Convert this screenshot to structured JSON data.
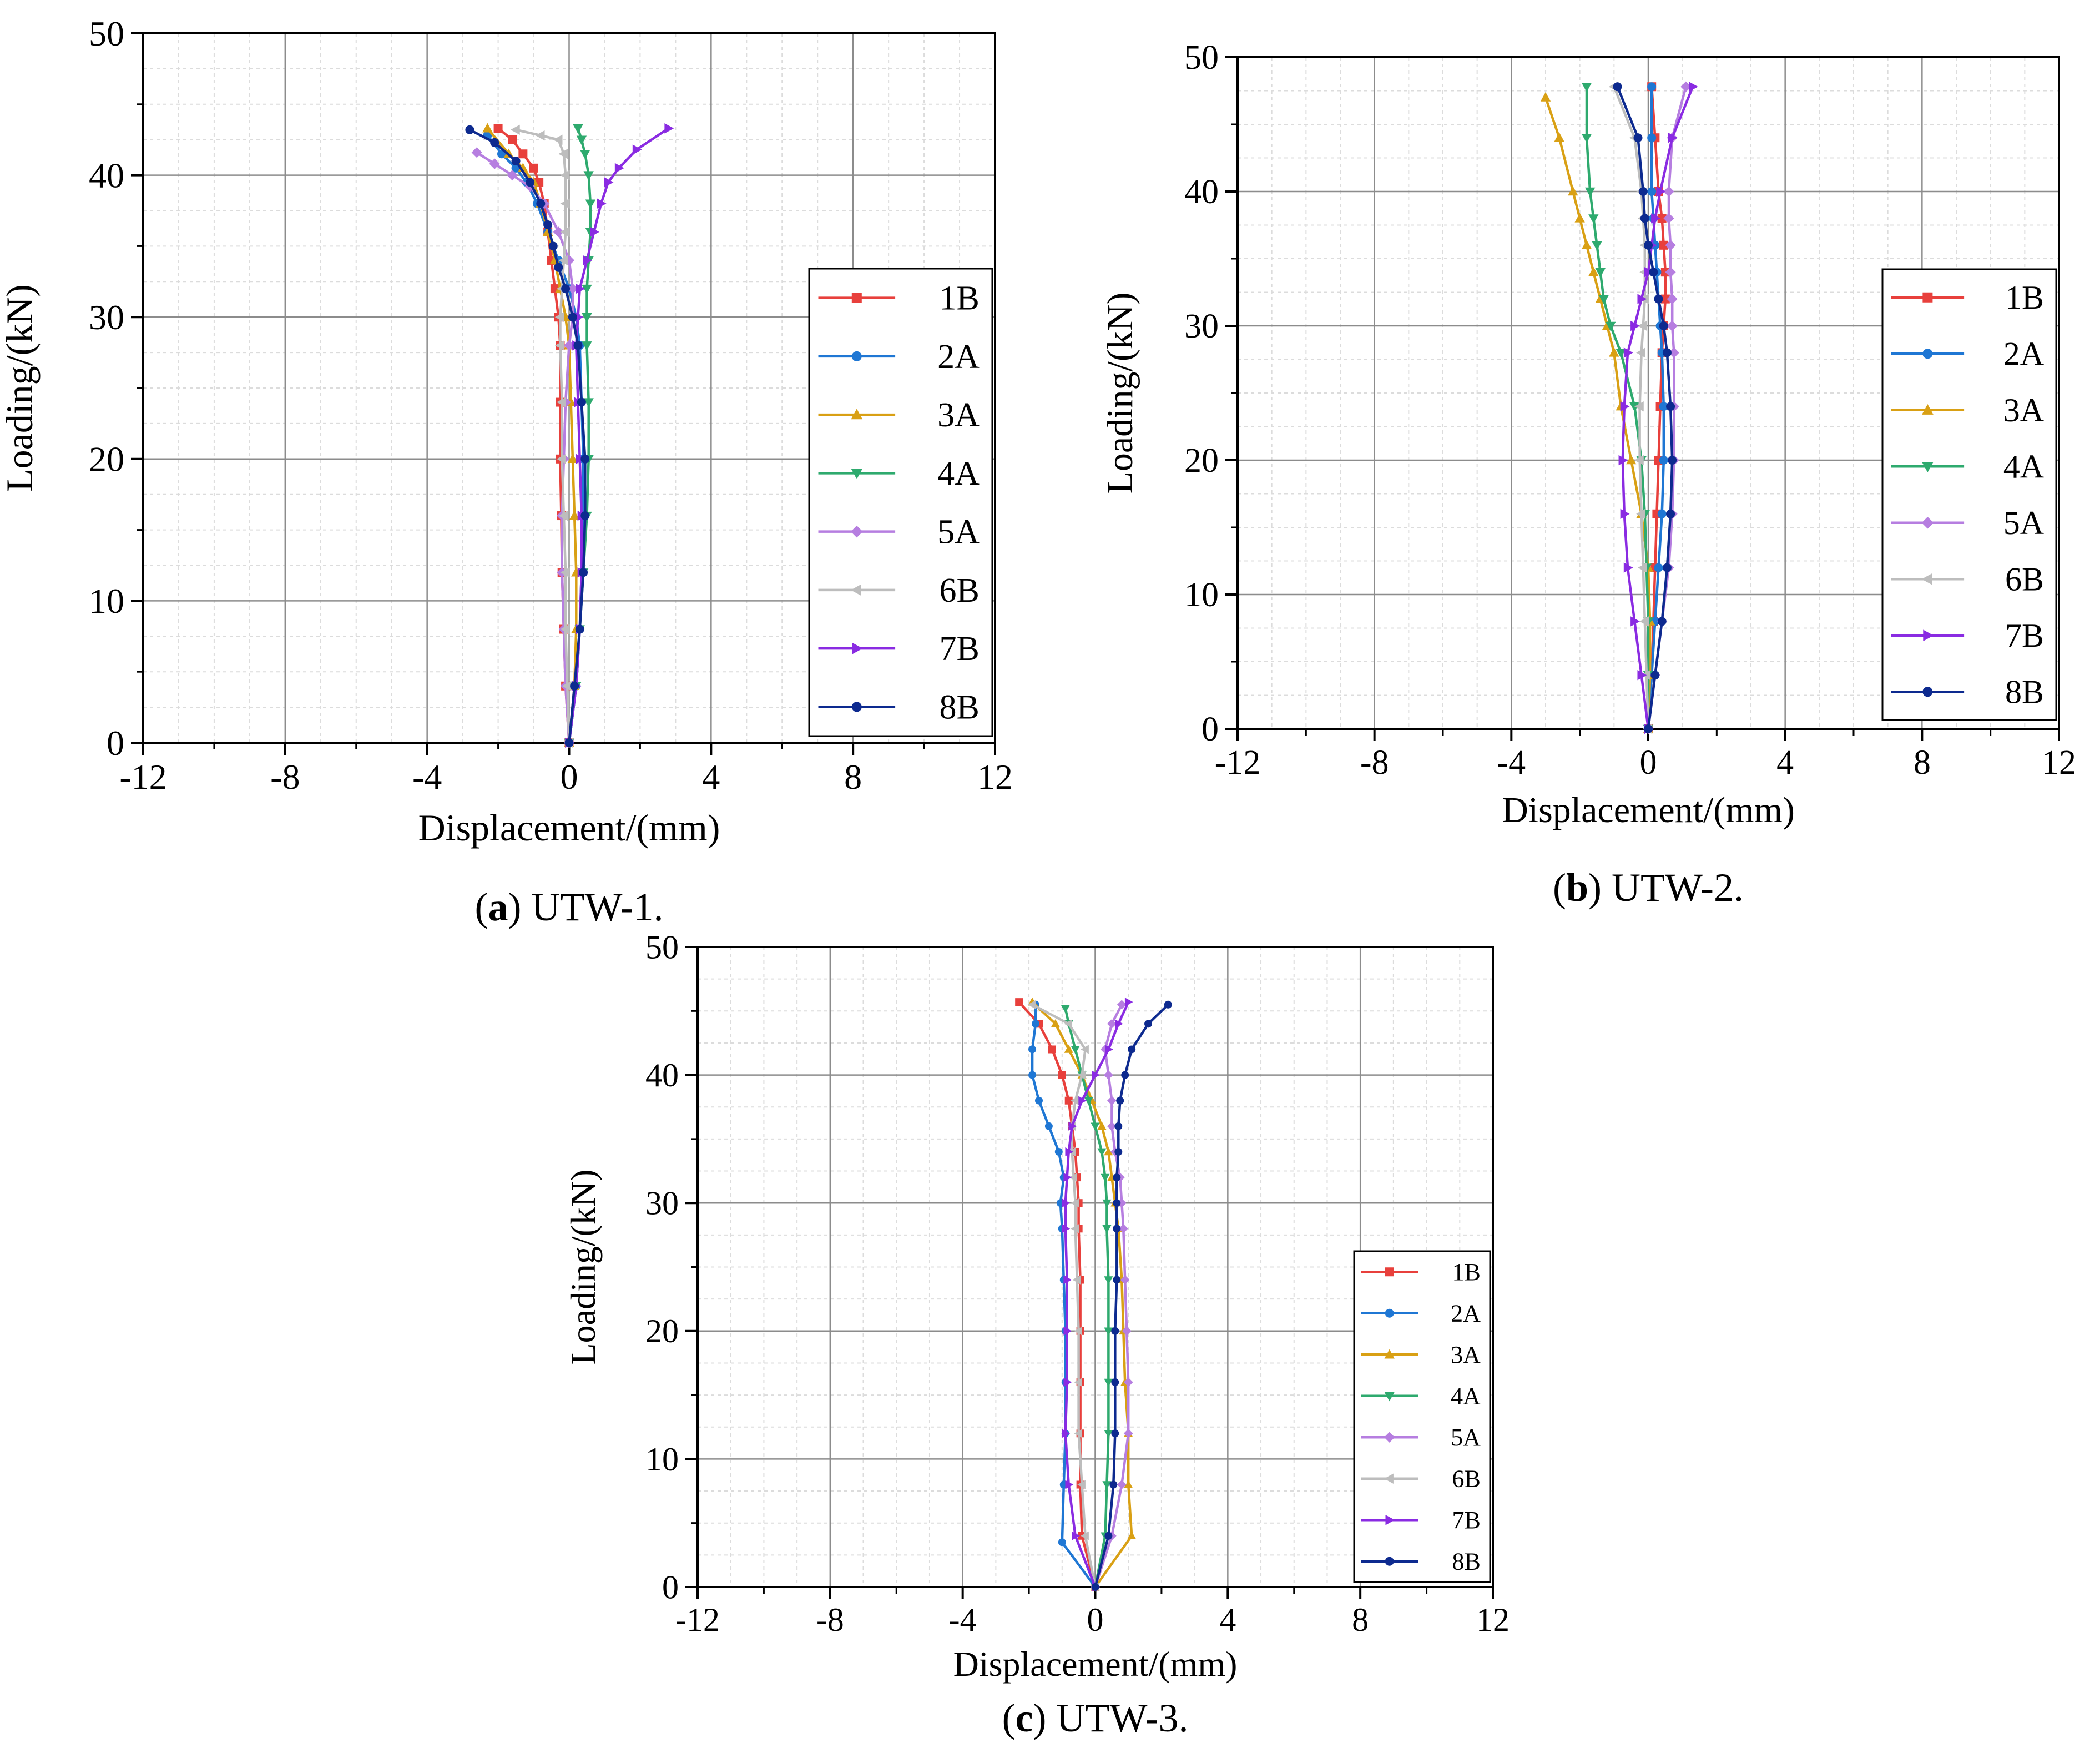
{
  "figure": {
    "panels": [
      "a",
      "b",
      "c"
    ]
  },
  "chart_data": [
    {
      "id": "a",
      "type": "line",
      "caption_letter": "a",
      "caption_rest": " UTW-1.",
      "xlabel": "Displacement/(mm)",
      "ylabel": "Loading/(kN)",
      "xlim": [
        -12,
        12
      ],
      "ylim": [
        0,
        50
      ],
      "xticks": [
        -12,
        -8,
        -4,
        0,
        4,
        8,
        12
      ],
      "yticks": [
        0,
        10,
        20,
        30,
        40,
        50
      ],
      "grid": true,
      "legend_position": "right",
      "series": [
        {
          "name": "1B",
          "color": "#e8403c",
          "marker": "square",
          "x": [
            0,
            -0.1,
            -0.15,
            -0.2,
            -0.22,
            -0.25,
            -0.25,
            -0.25,
            -0.3,
            -0.4,
            -0.5,
            -0.6,
            -0.7,
            -0.85,
            -1.0,
            -1.3,
            -1.6,
            -2.0
          ],
          "y": [
            0,
            4,
            8,
            12,
            16,
            20,
            24,
            28,
            30,
            32,
            34,
            36,
            38,
            39.5,
            40.5,
            41.5,
            42.5,
            43.3
          ]
        },
        {
          "name": "2A",
          "color": "#1f77d4",
          "marker": "circle",
          "x": [
            0,
            0.2,
            0.3,
            0.35,
            0.4,
            0.4,
            0.35,
            0.3,
            0.2,
            0.0,
            -0.3,
            -0.6,
            -0.9,
            -1.2,
            -1.5,
            -1.9,
            -2.3
          ],
          "y": [
            0,
            4,
            8,
            12,
            16,
            20,
            24,
            28,
            30,
            32,
            34,
            36,
            38,
            39.5,
            40.5,
            41.5,
            42.8
          ]
        },
        {
          "name": "3A",
          "color": "#d9a014",
          "marker": "triangle-up",
          "x": [
            0,
            0.15,
            0.2,
            0.2,
            0.15,
            0.1,
            0.05,
            0.0,
            -0.1,
            -0.25,
            -0.4,
            -0.6,
            -0.8,
            -1.0,
            -1.3,
            -1.7,
            -2.3
          ],
          "y": [
            0,
            4,
            8,
            12,
            16,
            20,
            24,
            28,
            30,
            32,
            34,
            36,
            38,
            39.5,
            40.5,
            41.5,
            43.3
          ]
        },
        {
          "name": "4A",
          "color": "#2eaa6e",
          "marker": "triangle-down",
          "x": [
            0,
            0.2,
            0.3,
            0.4,
            0.5,
            0.55,
            0.55,
            0.5,
            0.5,
            0.5,
            0.55,
            0.6,
            0.6,
            0.55,
            0.45,
            0.35,
            0.25
          ],
          "y": [
            0,
            4,
            8,
            12,
            16,
            20,
            24,
            28,
            30,
            32,
            34,
            36,
            38,
            40,
            41.5,
            42.5,
            43.3
          ]
        },
        {
          "name": "5A",
          "color": "#b67ee0",
          "marker": "diamond",
          "x": [
            0,
            -0.1,
            -0.15,
            -0.2,
            -0.2,
            -0.15,
            -0.1,
            0.0,
            0.1,
            0.1,
            0.0,
            -0.3,
            -0.7,
            -1.1,
            -1.6,
            -2.1,
            -2.6
          ],
          "y": [
            0,
            4,
            8,
            12,
            16,
            20,
            24,
            28,
            30,
            32,
            34,
            36,
            38,
            39.2,
            40.0,
            40.8,
            41.6
          ]
        },
        {
          "name": "6B",
          "color": "#bdbdbd",
          "marker": "triangle-left",
          "x": [
            0,
            -0.05,
            -0.1,
            -0.1,
            -0.15,
            -0.2,
            -0.2,
            -0.25,
            -0.25,
            -0.2,
            -0.15,
            -0.1,
            -0.1,
            -0.1,
            -0.15,
            -0.3,
            -0.8,
            -1.5
          ],
          "y": [
            0,
            4,
            8,
            12,
            16,
            20,
            24,
            28,
            30,
            32,
            34,
            36,
            38,
            40,
            41.5,
            42.5,
            42.8,
            43.2
          ]
        },
        {
          "name": "7B",
          "color": "#8a2be2",
          "marker": "triangle-right",
          "x": [
            0,
            0.2,
            0.3,
            0.35,
            0.35,
            0.3,
            0.25,
            0.2,
            0.25,
            0.3,
            0.5,
            0.7,
            0.9,
            1.1,
            1.4,
            1.9,
            2.8
          ],
          "y": [
            0,
            4,
            8,
            12,
            16,
            20,
            24,
            28,
            30,
            32,
            34,
            36,
            38,
            39.5,
            40.5,
            41.8,
            43.3
          ]
        },
        {
          "name": "8B",
          "color": "#0d2a8f",
          "marker": "circle",
          "x": [
            0,
            0.15,
            0.3,
            0.4,
            0.45,
            0.45,
            0.35,
            0.25,
            0.1,
            -0.1,
            -0.3,
            -0.45,
            -0.6,
            -0.8,
            -1.1,
            -1.5,
            -2.1,
            -2.8
          ],
          "y": [
            0,
            4,
            8,
            12,
            16,
            20,
            24,
            28,
            30,
            32,
            33.5,
            35,
            36.5,
            38,
            39.5,
            41,
            42.3,
            43.2
          ]
        }
      ]
    },
    {
      "id": "b",
      "type": "line",
      "caption_letter": "b",
      "caption_rest": " UTW-2.",
      "xlabel": "Displacement/(mm)",
      "ylabel": "Loading/(kN)",
      "xlim": [
        -12,
        12
      ],
      "ylim": [
        0,
        50
      ],
      "xticks": [
        -12,
        -8,
        -4,
        0,
        4,
        8,
        12
      ],
      "yticks": [
        0,
        10,
        20,
        30,
        40,
        50
      ],
      "grid": true,
      "legend_position": "right",
      "series": [
        {
          "name": "1B",
          "color": "#e8403c",
          "marker": "square",
          "x": [
            0,
            0.1,
            0.15,
            0.2,
            0.25,
            0.3,
            0.35,
            0.4,
            0.45,
            0.5,
            0.5,
            0.45,
            0.4,
            0.3,
            0.2,
            0.1
          ],
          "y": [
            0,
            4,
            8,
            12,
            16,
            20,
            24,
            28,
            30,
            32,
            34,
            36,
            38,
            40,
            44,
            47.8
          ]
        },
        {
          "name": "2A",
          "color": "#1f77d4",
          "marker": "circle",
          "x": [
            0,
            0.1,
            0.2,
            0.3,
            0.4,
            0.45,
            0.45,
            0.4,
            0.35,
            0.3,
            0.25,
            0.2,
            0.15,
            0.1,
            0.1,
            0.1
          ],
          "y": [
            0,
            4,
            8,
            12,
            16,
            20,
            24,
            28,
            30,
            32,
            34,
            36,
            38,
            40,
            44,
            47.8
          ]
        },
        {
          "name": "3A",
          "color": "#d9a014",
          "marker": "triangle-up",
          "x": [
            0,
            0.05,
            0.05,
            0.0,
            -0.2,
            -0.5,
            -0.8,
            -1.0,
            -1.2,
            -1.4,
            -1.6,
            -1.8,
            -2.0,
            -2.2,
            -2.6,
            -3.0
          ],
          "y": [
            0,
            4,
            8,
            12,
            16,
            20,
            24,
            28,
            30,
            32,
            34,
            36,
            38,
            40,
            44,
            47
          ]
        },
        {
          "name": "4A",
          "color": "#2eaa6e",
          "marker": "triangle-down",
          "x": [
            0,
            0.0,
            0.0,
            -0.05,
            -0.1,
            -0.2,
            -0.4,
            -0.8,
            -1.1,
            -1.3,
            -1.4,
            -1.5,
            -1.6,
            -1.7,
            -1.8,
            -1.8
          ],
          "y": [
            0,
            4,
            8,
            12,
            16,
            20,
            24,
            28,
            30,
            32,
            34,
            36,
            38,
            40,
            44,
            47.8
          ]
        },
        {
          "name": "5A",
          "color": "#b67ee0",
          "marker": "diamond",
          "x": [
            0,
            0.2,
            0.4,
            0.6,
            0.7,
            0.75,
            0.75,
            0.75,
            0.7,
            0.7,
            0.65,
            0.65,
            0.6,
            0.6,
            0.7,
            1.1
          ],
          "y": [
            0,
            4,
            8,
            12,
            16,
            20,
            24,
            28,
            30,
            32,
            34,
            36,
            38,
            40,
            44,
            47.8
          ]
        },
        {
          "name": "6B",
          "color": "#bdbdbd",
          "marker": "triangle-left",
          "x": [
            0,
            -0.05,
            -0.1,
            -0.15,
            -0.2,
            -0.25,
            -0.25,
            -0.2,
            -0.15,
            -0.1,
            -0.1,
            -0.1,
            -0.15,
            -0.2,
            -0.4,
            -1.0
          ],
          "y": [
            0,
            4,
            8,
            12,
            16,
            20,
            24,
            28,
            30,
            32,
            34,
            36,
            38,
            40,
            44,
            47.8
          ]
        },
        {
          "name": "7B",
          "color": "#8a2be2",
          "marker": "triangle-right",
          "x": [
            0,
            -0.2,
            -0.4,
            -0.6,
            -0.7,
            -0.75,
            -0.7,
            -0.6,
            -0.4,
            -0.2,
            0.0,
            0.1,
            0.2,
            0.35,
            0.7,
            1.3
          ],
          "y": [
            0,
            4,
            8,
            12,
            16,
            20,
            24,
            28,
            30,
            32,
            34,
            36,
            38,
            40,
            44,
            47.8
          ]
        },
        {
          "name": "8B",
          "color": "#0d2a8f",
          "marker": "circle",
          "x": [
            0,
            0.2,
            0.4,
            0.55,
            0.65,
            0.7,
            0.65,
            0.55,
            0.45,
            0.3,
            0.15,
            0.0,
            -0.1,
            -0.15,
            -0.3,
            -0.9
          ],
          "y": [
            0,
            4,
            8,
            12,
            16,
            20,
            24,
            28,
            30,
            32,
            34,
            36,
            38,
            40,
            44,
            47.8
          ]
        }
      ]
    },
    {
      "id": "c",
      "type": "line",
      "caption_letter": "c",
      "caption_rest": " UTW-3.",
      "xlabel": "Displacement/(mm)",
      "ylabel": "Loading/(kN)",
      "xlim": [
        -12,
        12
      ],
      "ylim": [
        0,
        50
      ],
      "xticks": [
        -12,
        -8,
        -4,
        0,
        4,
        8,
        12
      ],
      "yticks": [
        0,
        10,
        20,
        30,
        40,
        50
      ],
      "grid": true,
      "legend_position": "bottom-right",
      "series": [
        {
          "name": "1B",
          "color": "#e8403c",
          "marker": "square",
          "x": [
            0,
            -0.4,
            -0.45,
            -0.45,
            -0.45,
            -0.45,
            -0.45,
            -0.5,
            -0.5,
            -0.55,
            -0.6,
            -0.7,
            -0.8,
            -1.0,
            -1.3,
            -1.7,
            -2.3
          ],
          "y": [
            0,
            4,
            8,
            12,
            16,
            20,
            24,
            28,
            30,
            32,
            34,
            36,
            38,
            40,
            42,
            44,
            45.7
          ]
        },
        {
          "name": "2A",
          "color": "#1f77d4",
          "marker": "circle",
          "x": [
            0,
            -1.0,
            -0.95,
            -0.9,
            -0.9,
            -0.9,
            -0.95,
            -1.0,
            -1.05,
            -0.95,
            -1.1,
            -1.4,
            -1.7,
            -1.9,
            -1.9,
            -1.8,
            -1.8
          ],
          "y": [
            0,
            3.5,
            8,
            12,
            16,
            20,
            24,
            28,
            30,
            32,
            34,
            36,
            38,
            40,
            42,
            44,
            45.5
          ]
        },
        {
          "name": "3A",
          "color": "#d9a014",
          "marker": "triangle-up",
          "x": [
            0,
            1.1,
            1.0,
            1.0,
            0.9,
            0.85,
            0.8,
            0.7,
            0.6,
            0.5,
            0.4,
            0.2,
            -0.1,
            -0.4,
            -0.8,
            -1.2,
            -1.9
          ],
          "y": [
            0,
            4,
            8,
            12,
            16,
            20,
            24,
            28,
            30,
            32,
            34,
            36,
            38,
            40,
            42,
            44,
            45.7
          ]
        },
        {
          "name": "4A",
          "color": "#2eaa6e",
          "marker": "triangle-down",
          "x": [
            0,
            0.3,
            0.35,
            0.4,
            0.4,
            0.4,
            0.4,
            0.35,
            0.35,
            0.3,
            0.2,
            0.0,
            -0.2,
            -0.4,
            -0.6,
            -0.8,
            -0.9
          ],
          "y": [
            0,
            4,
            8,
            12,
            16,
            20,
            24,
            28,
            30,
            32,
            34,
            36,
            38,
            40,
            42,
            44,
            45.2
          ]
        },
        {
          "name": "5A",
          "color": "#b67ee0",
          "marker": "diamond",
          "x": [
            0,
            0.5,
            0.8,
            1.0,
            1.0,
            0.95,
            0.9,
            0.85,
            0.8,
            0.75,
            0.6,
            0.5,
            0.5,
            0.4,
            0.3,
            0.5,
            0.8
          ],
          "y": [
            0,
            4,
            8,
            12,
            16,
            20,
            24,
            28,
            30,
            32,
            34,
            36,
            38,
            40,
            42,
            44,
            45.5
          ]
        },
        {
          "name": "6B",
          "color": "#bdbdbd",
          "marker": "triangle-left",
          "x": [
            0,
            -0.3,
            -0.4,
            -0.5,
            -0.5,
            -0.5,
            -0.55,
            -0.6,
            -0.6,
            -0.65,
            -0.7,
            -0.7,
            -0.6,
            -0.4,
            -0.3,
            -0.8,
            -1.9
          ],
          "y": [
            0,
            4,
            8,
            12,
            16,
            20,
            24,
            28,
            30,
            32,
            34,
            36,
            38,
            40,
            42,
            44,
            45.5
          ]
        },
        {
          "name": "7B",
          "color": "#8a2be2",
          "marker": "triangle-right",
          "x": [
            0,
            -0.6,
            -0.8,
            -0.9,
            -0.85,
            -0.85,
            -0.85,
            -0.9,
            -0.9,
            -0.85,
            -0.8,
            -0.7,
            -0.4,
            0.0,
            0.4,
            0.7,
            1.0
          ],
          "y": [
            0,
            4,
            8,
            12,
            16,
            20,
            24,
            28,
            30,
            32,
            34,
            36,
            38,
            40,
            42,
            44,
            45.7
          ]
        },
        {
          "name": "8B",
          "color": "#0d2a8f",
          "marker": "circle",
          "x": [
            0,
            0.4,
            0.55,
            0.6,
            0.6,
            0.6,
            0.65,
            0.65,
            0.65,
            0.65,
            0.7,
            0.7,
            0.75,
            0.9,
            1.1,
            1.6,
            2.2
          ],
          "y": [
            0,
            4,
            8,
            12,
            16,
            20,
            24,
            28,
            30,
            32,
            34,
            36,
            38,
            40,
            42,
            44,
            45.5
          ]
        }
      ]
    }
  ]
}
